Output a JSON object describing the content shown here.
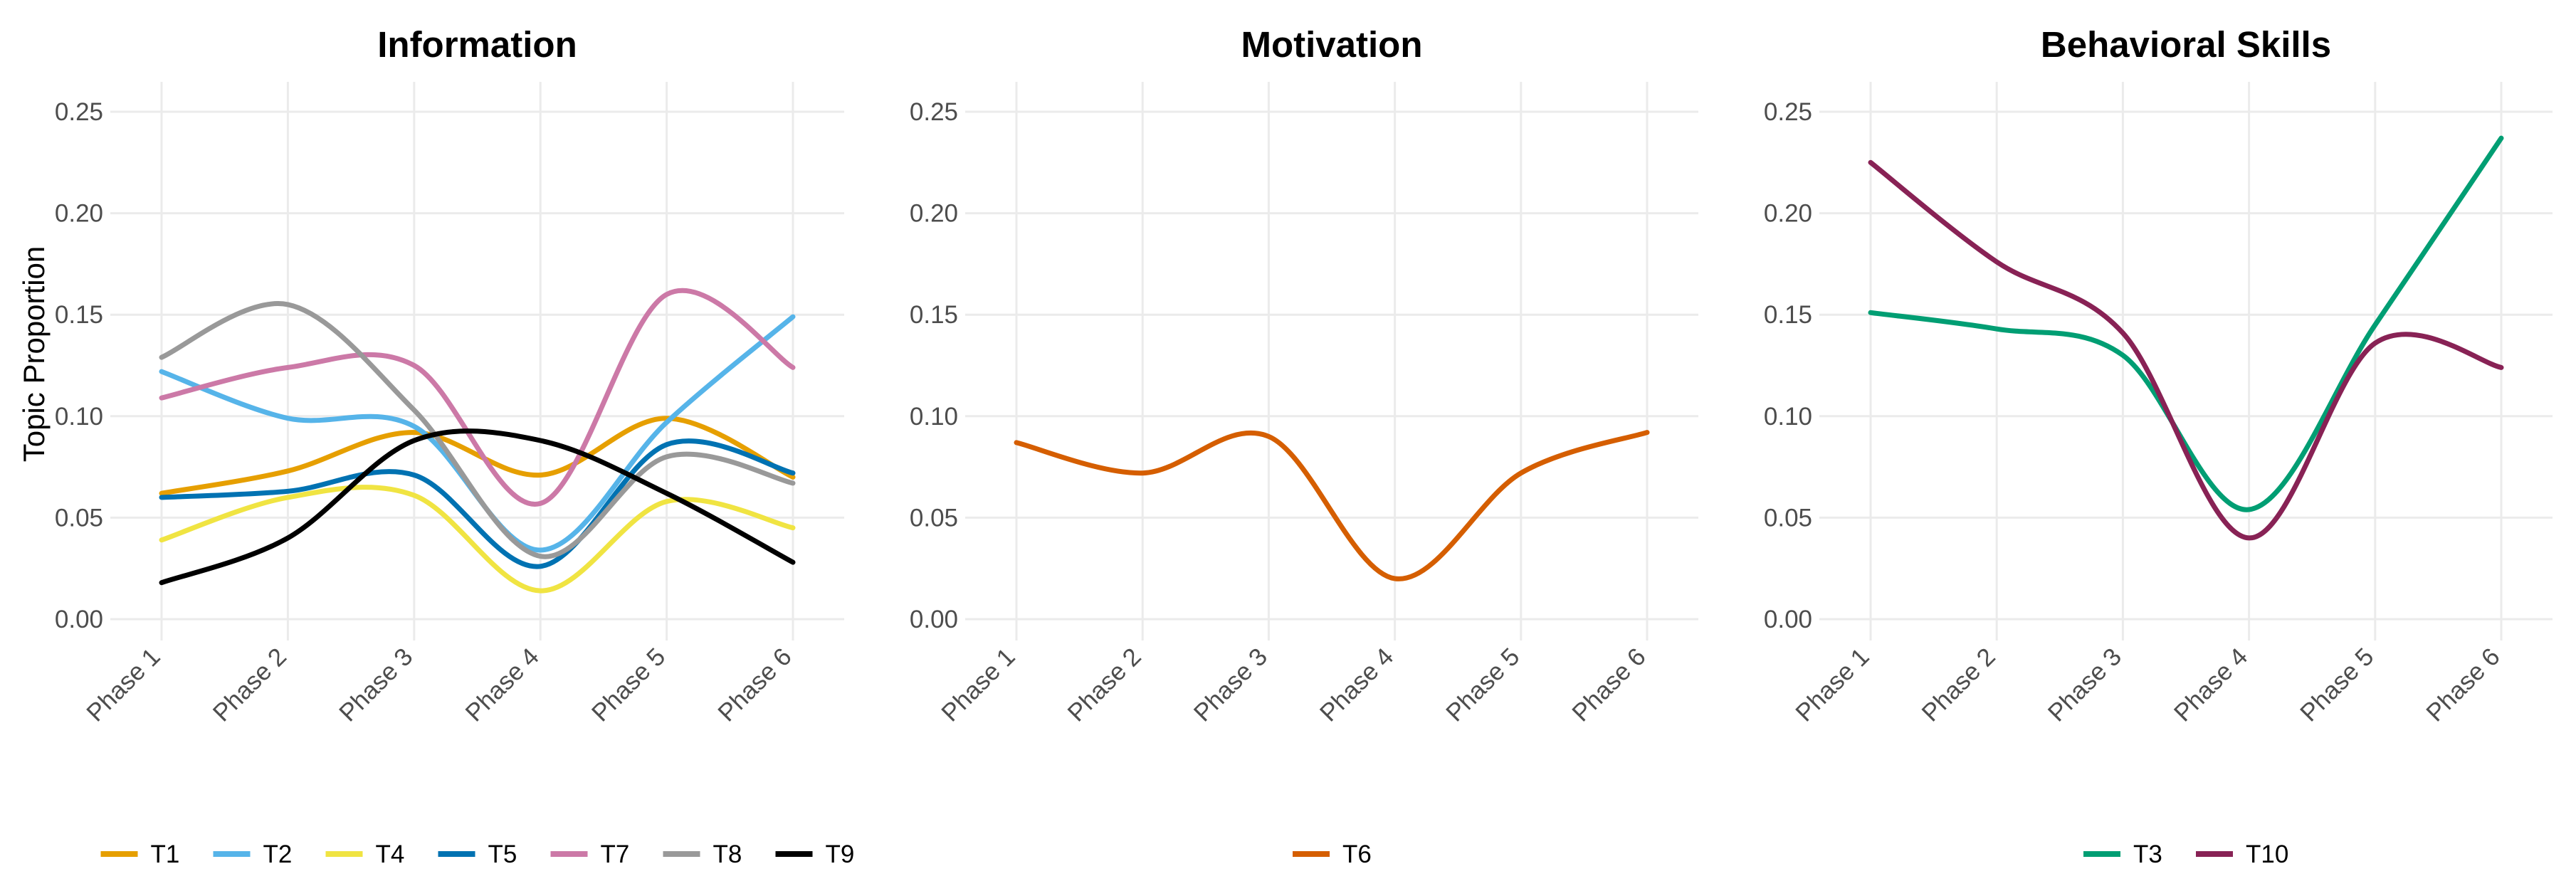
{
  "chart_data": {
    "type": "line",
    "ylabel": "Topic Proportion",
    "categories": [
      "Phase 1",
      "Phase 2",
      "Phase 3",
      "Phase 4",
      "Phase 5",
      "Phase 6"
    ],
    "ylim": [
      0,
      0.25
    ],
    "yticks": [
      "0.00",
      "0.05",
      "0.10",
      "0.15",
      "0.20",
      "0.25"
    ],
    "grid": true,
    "legend_position": "bottom",
    "panels": [
      {
        "title": "Information",
        "series": [
          {
            "name": "T1",
            "color": "#E69F00",
            "values": [
              0.062,
              0.073,
              0.092,
              0.071,
              0.099,
              0.07
            ]
          },
          {
            "name": "T2",
            "color": "#56B4E9",
            "values": [
              0.122,
              0.099,
              0.095,
              0.034,
              0.097,
              0.149
            ]
          },
          {
            "name": "T4",
            "color": "#F0E442",
            "values": [
              0.039,
              0.06,
              0.061,
              0.014,
              0.058,
              0.045
            ]
          },
          {
            "name": "T5",
            "color": "#0072B2",
            "values": [
              0.06,
              0.063,
              0.071,
              0.026,
              0.086,
              0.072
            ]
          },
          {
            "name": "T7",
            "color": "#CC79A7",
            "values": [
              0.109,
              0.124,
              0.125,
              0.057,
              0.16,
              0.124
            ]
          },
          {
            "name": "T8",
            "color": "#999999",
            "values": [
              0.129,
              0.155,
              0.103,
              0.031,
              0.08,
              0.067
            ]
          },
          {
            "name": "T9",
            "color": "#000000",
            "values": [
              0.018,
              0.04,
              0.088,
              0.088,
              0.062,
              0.028
            ]
          }
        ]
      },
      {
        "title": "Motivation",
        "series": [
          {
            "name": "T6",
            "color": "#D55E00",
            "values": [
              0.087,
              0.072,
              0.09,
              0.02,
              0.072,
              0.092
            ]
          }
        ]
      },
      {
        "title": "Behavioral Skills",
        "series": [
          {
            "name": "T3",
            "color": "#009E73",
            "values": [
              0.151,
              0.143,
              0.13,
              0.054,
              0.145,
              0.237
            ]
          },
          {
            "name": "T10",
            "color": "#882255",
            "values": [
              0.225,
              0.176,
              0.141,
              0.04,
              0.136,
              0.124
            ]
          }
        ]
      }
    ]
  }
}
